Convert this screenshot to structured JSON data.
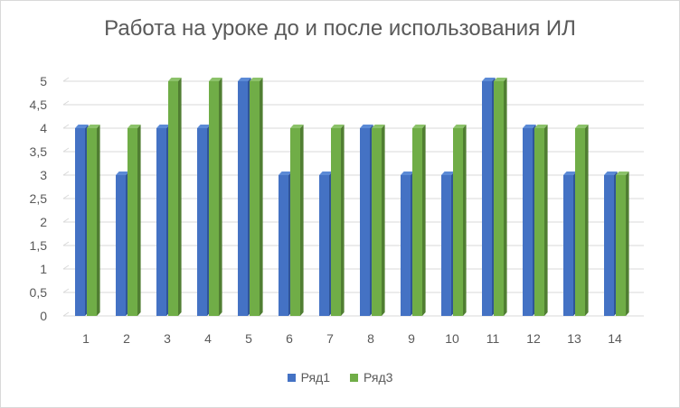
{
  "chart_data": {
    "type": "bar",
    "title": "Работа на уроке до и после использования ИЛ",
    "categories": [
      "1",
      "2",
      "3",
      "4",
      "5",
      "6",
      "7",
      "8",
      "9",
      "10",
      "11",
      "12",
      "13",
      "14"
    ],
    "series": [
      {
        "name": "Ряд1",
        "color": "#4472c4",
        "values": [
          4,
          3,
          4,
          4,
          5,
          3,
          3,
          4,
          3,
          3,
          5,
          4,
          3,
          3
        ]
      },
      {
        "name": "Ряд3",
        "color": "#70ad47",
        "values": [
          4,
          4,
          5,
          5,
          5,
          4,
          4,
          4,
          4,
          4,
          5,
          4,
          4,
          3
        ]
      }
    ],
    "ylim": [
      0,
      5
    ],
    "yticks": [
      "0",
      "0,5",
      "1",
      "1,5",
      "2",
      "2,5",
      "3",
      "3,5",
      "4",
      "4,5",
      "5"
    ],
    "grid": true,
    "legend_position": "bottom"
  }
}
